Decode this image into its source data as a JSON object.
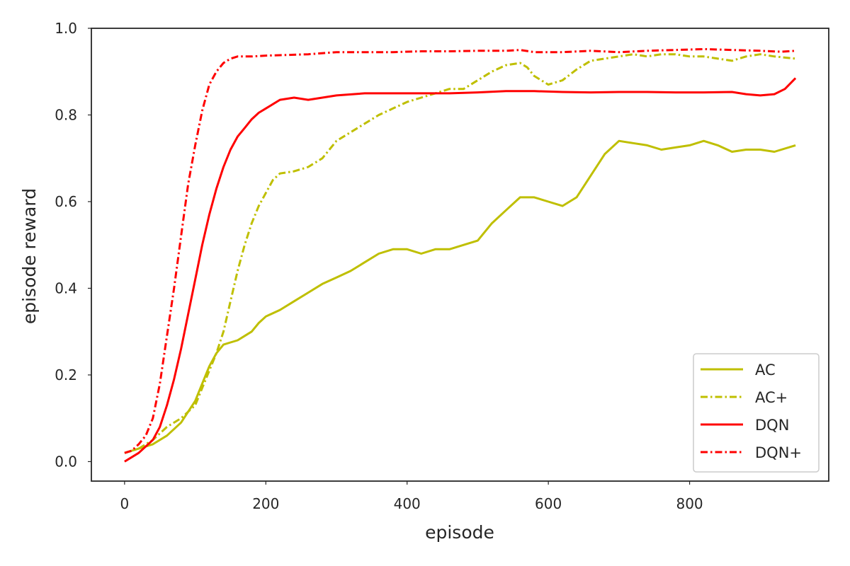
{
  "chart_data": {
    "type": "line",
    "title": "",
    "xlabel": "episode",
    "ylabel": "episode reward",
    "xlim": [
      -47,
      997
    ],
    "ylim": [
      -0.045,
      1.0
    ],
    "xticks": [
      0,
      200,
      400,
      600,
      800
    ],
    "yticks": [
      0.0,
      0.2,
      0.4,
      0.6,
      0.8,
      1.0
    ],
    "xtick_labels": [
      "0",
      "200",
      "400",
      "600",
      "800"
    ],
    "ytick_labels": [
      "0.0",
      "0.2",
      "0.4",
      "0.6",
      "0.8",
      "1.0"
    ],
    "grid": false,
    "legend_position": "lower-right",
    "series": [
      {
        "name": "AC",
        "color": "#bfbf00",
        "dash": "solid",
        "x": [
          0,
          20,
          40,
          60,
          80,
          100,
          110,
          120,
          130,
          140,
          150,
          160,
          170,
          180,
          190,
          200,
          220,
          240,
          260,
          280,
          300,
          320,
          340,
          360,
          380,
          400,
          420,
          440,
          460,
          480,
          500,
          520,
          540,
          560,
          580,
          600,
          620,
          640,
          660,
          680,
          700,
          720,
          740,
          760,
          780,
          800,
          820,
          840,
          860,
          880,
          900,
          920,
          950
        ],
        "y": [
          0.02,
          0.03,
          0.04,
          0.06,
          0.09,
          0.14,
          0.18,
          0.22,
          0.25,
          0.27,
          0.275,
          0.28,
          0.29,
          0.3,
          0.32,
          0.335,
          0.35,
          0.37,
          0.39,
          0.41,
          0.425,
          0.44,
          0.46,
          0.48,
          0.49,
          0.49,
          0.48,
          0.49,
          0.49,
          0.5,
          0.51,
          0.55,
          0.58,
          0.61,
          0.61,
          0.6,
          0.59,
          0.61,
          0.66,
          0.71,
          0.74,
          0.735,
          0.73,
          0.72,
          0.725,
          0.73,
          0.74,
          0.73,
          0.715,
          0.72,
          0.72,
          0.715,
          0.73
        ]
      },
      {
        "name": "AC+",
        "color": "#bfbf00",
        "dash": "dashdot",
        "x": [
          0,
          20,
          40,
          60,
          80,
          100,
          110,
          120,
          130,
          140,
          150,
          160,
          170,
          180,
          190,
          200,
          210,
          220,
          240,
          260,
          280,
          300,
          320,
          340,
          360,
          380,
          400,
          420,
          440,
          460,
          480,
          500,
          520,
          540,
          560,
          570,
          580,
          600,
          620,
          640,
          660,
          680,
          700,
          720,
          740,
          760,
          780,
          800,
          820,
          840,
          860,
          880,
          900,
          920,
          950
        ],
        "y": [
          0.02,
          0.03,
          0.05,
          0.08,
          0.1,
          0.13,
          0.17,
          0.21,
          0.25,
          0.3,
          0.37,
          0.44,
          0.5,
          0.55,
          0.59,
          0.62,
          0.65,
          0.665,
          0.67,
          0.68,
          0.7,
          0.74,
          0.76,
          0.78,
          0.8,
          0.815,
          0.83,
          0.84,
          0.85,
          0.86,
          0.86,
          0.88,
          0.9,
          0.915,
          0.92,
          0.91,
          0.89,
          0.87,
          0.88,
          0.905,
          0.925,
          0.93,
          0.935,
          0.94,
          0.935,
          0.94,
          0.94,
          0.935,
          0.935,
          0.93,
          0.925,
          0.935,
          0.94,
          0.935,
          0.93
        ]
      },
      {
        "name": "DQN",
        "color": "#ff0000",
        "dash": "solid",
        "x": [
          0,
          10,
          20,
          30,
          40,
          50,
          60,
          70,
          80,
          90,
          100,
          110,
          120,
          130,
          140,
          150,
          160,
          170,
          180,
          190,
          200,
          210,
          220,
          240,
          260,
          280,
          300,
          340,
          380,
          420,
          460,
          500,
          540,
          580,
          620,
          660,
          700,
          740,
          780,
          820,
          860,
          880,
          900,
          920,
          935,
          950
        ],
        "y": [
          0.0,
          0.01,
          0.02,
          0.035,
          0.05,
          0.08,
          0.13,
          0.19,
          0.26,
          0.34,
          0.42,
          0.5,
          0.57,
          0.63,
          0.68,
          0.72,
          0.75,
          0.77,
          0.79,
          0.805,
          0.815,
          0.825,
          0.835,
          0.84,
          0.835,
          0.84,
          0.845,
          0.85,
          0.85,
          0.85,
          0.85,
          0.852,
          0.855,
          0.855,
          0.853,
          0.852,
          0.853,
          0.853,
          0.852,
          0.852,
          0.853,
          0.848,
          0.845,
          0.848,
          0.86,
          0.885
        ]
      },
      {
        "name": "DQN+",
        "color": "#ff0000",
        "dash": "dashdot",
        "x": [
          0,
          10,
          20,
          30,
          40,
          50,
          60,
          70,
          80,
          90,
          100,
          110,
          120,
          130,
          140,
          150,
          160,
          170,
          180,
          200,
          220,
          260,
          300,
          340,
          380,
          420,
          460,
          500,
          540,
          560,
          580,
          620,
          660,
          700,
          740,
          780,
          820,
          860,
          900,
          930,
          950
        ],
        "y": [
          0.02,
          0.025,
          0.04,
          0.06,
          0.1,
          0.18,
          0.29,
          0.4,
          0.52,
          0.64,
          0.73,
          0.81,
          0.87,
          0.9,
          0.92,
          0.93,
          0.935,
          0.935,
          0.935,
          0.937,
          0.938,
          0.94,
          0.945,
          0.945,
          0.945,
          0.947,
          0.947,
          0.948,
          0.948,
          0.95,
          0.945,
          0.945,
          0.948,
          0.945,
          0.948,
          0.95,
          0.952,
          0.95,
          0.948,
          0.946,
          0.948
        ]
      }
    ]
  }
}
